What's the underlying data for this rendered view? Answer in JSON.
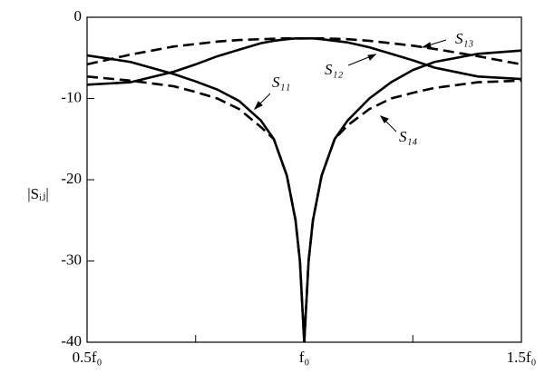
{
  "chart_data": {
    "type": "line",
    "y_label": "|Sᵢⱼ|",
    "x": [
      0.5,
      0.6,
      0.7,
      0.75,
      0.8,
      0.85,
      0.9,
      0.93,
      0.96,
      0.98,
      0.99,
      1.0,
      1.01,
      1.02,
      1.04,
      1.07,
      1.1,
      1.15,
      1.2,
      1.25,
      1.3,
      1.4,
      1.5
    ],
    "series": [
      {
        "name": "S₁₁",
        "color": "#000000",
        "dashed": false,
        "values": [
          -4.7,
          -5.5,
          -7.0,
          -7.9,
          -8.9,
          -10.3,
          -12.7,
          -15,
          -19.5,
          -25,
          -30,
          -40,
          -30,
          -25,
          -19.5,
          -15,
          -12.7,
          -10,
          -8,
          -6.5,
          -5.5,
          -4.5,
          -4.1
        ]
      },
      {
        "name": "S₁₂",
        "color": "#000000",
        "dashed": false,
        "values": [
          -8.3,
          -8.0,
          -6.7,
          -5.8,
          -4.8,
          -4.0,
          -3.2,
          -2.9,
          -2.7,
          -2.6,
          -2.6,
          -2.6,
          -2.6,
          -2.6,
          -2.7,
          -2.9,
          -3.1,
          -3.7,
          -4.5,
          -5.3,
          -6.2,
          -7.3,
          -7.6
        ]
      },
      {
        "name": "S₁₃",
        "color": "#000000",
        "dashed": true,
        "values": [
          -5.8,
          -4.6,
          -3.6,
          -3.3,
          -3.0,
          -2.8,
          -2.7,
          -2.65,
          -2.6,
          -2.6,
          -2.6,
          -2.6,
          -2.6,
          -2.6,
          -2.6,
          -2.65,
          -2.7,
          -2.9,
          -3.2,
          -3.5,
          -3.9,
          -4.8,
          -5.8
        ]
      },
      {
        "name": "S₁₄",
        "color": "#000000",
        "dashed": true,
        "values": [
          -7.3,
          -7.8,
          -8.5,
          -9.2,
          -10,
          -11.3,
          -13.5,
          -15,
          -19.5,
          -25,
          -30,
          -40,
          -30,
          -25,
          -19.5,
          -15,
          -13.3,
          -11.3,
          -10,
          -9.3,
          -8.7,
          -8.0,
          -7.8
        ]
      }
    ],
    "xlim": [
      0.5,
      1.5
    ],
    "ylim": [
      -40,
      0
    ],
    "xticks": [
      {
        "value": 0.5,
        "label": "0.5f₀"
      },
      {
        "value": 1.0,
        "label": "f₀"
      },
      {
        "value": 1.5,
        "label": "1.5f₀"
      }
    ],
    "xminorticks": [
      0.75,
      1.25
    ],
    "yticks": [
      0,
      -10,
      -20,
      -30,
      -40
    ]
  }
}
